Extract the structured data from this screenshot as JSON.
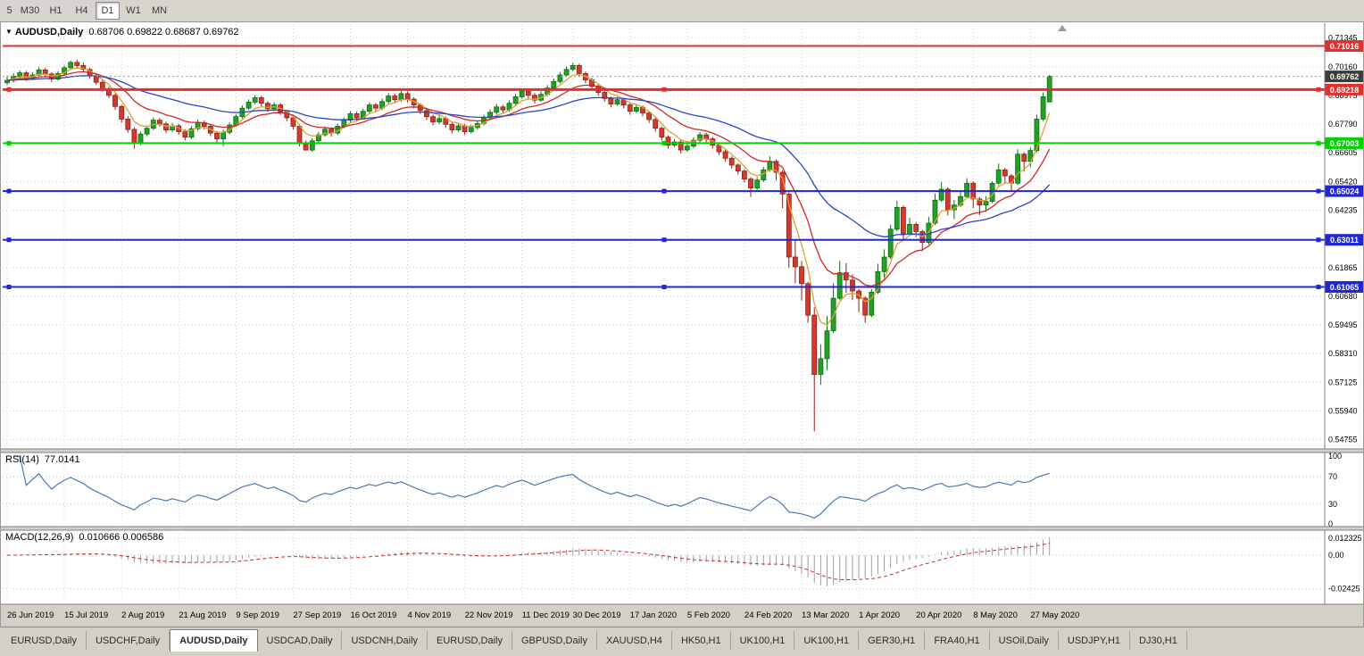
{
  "toolbar": {
    "timeframes": [
      "5",
      "M30",
      "H1",
      "H4",
      "D1",
      "W1",
      "MN"
    ],
    "active": "D1"
  },
  "chart_title": {
    "symbol": "AUDUSD,Daily",
    "ohlc": "0.68706 0.69822 0.68687 0.69762"
  },
  "chart_data": {
    "type": "candlestick",
    "symbol": "AUDUSD",
    "period": "Daily",
    "x_axis_dates": [
      "26 Jun 2019",
      "15 Jul 2019",
      "2 Aug 2019",
      "21 Aug 2019",
      "9 Sep 2019",
      "27 Sep 2019",
      "16 Oct 2019",
      "4 Nov 2019",
      "22 Nov 2019",
      "11 Dec 2019",
      "30 Dec 2019",
      "17 Jan 2020",
      "5 Feb 2020",
      "24 Feb 2020",
      "13 Mar 2020",
      "1 Apr 2020",
      "20 Apr 2020",
      "8 May 2020",
      "27 May 2020"
    ],
    "x_date_candle_index": [
      0,
      9,
      18,
      27,
      36,
      45,
      54,
      63,
      72,
      81,
      89,
      98,
      107,
      116,
      125,
      134,
      143,
      152,
      161
    ],
    "y_axis_labels": [
      "0.71345",
      "0.70160",
      "0.68975",
      "0.67790",
      "0.66605",
      "0.65420",
      "0.64235",
      "0.63050",
      "0.61865",
      "0.60680",
      "0.59495",
      "0.58310",
      "0.57125",
      "0.55940",
      "0.54755"
    ],
    "y_axis_range": {
      "top": 0.717,
      "bottom": 0.543
    },
    "colors": {
      "up": "#22a127",
      "up_stroke": "#0c6e12",
      "down": "#d33a2e",
      "down_stroke": "#8f1f16",
      "grid": "#cccccc",
      "background": "#ffffff",
      "red_line": "#e03030",
      "green_line": "#00d200",
      "blue_line": "#2026d2"
    },
    "moving_averages": [
      {
        "name": "ma-fast",
        "period": 5,
        "color": "#e0a030"
      },
      {
        "name": "ma-medium",
        "period": 13,
        "color": "#d02828"
      },
      {
        "name": "ma-slow",
        "period": 34,
        "color": "#2846c8"
      }
    ],
    "horizontal_lines": [
      {
        "price": 0.71016,
        "label": "0.71016",
        "color": "#e03030",
        "width": 2,
        "handles": false
      },
      {
        "price": 0.69218,
        "label": "0.69218",
        "color": "#e03030",
        "width": 3,
        "handles": true
      },
      {
        "price": 0.67003,
        "label": "0.67003",
        "color": "#00d200",
        "width": 2,
        "handles": true
      },
      {
        "price": 0.65024,
        "label": "0.65024",
        "color": "#2026d2",
        "width": 2,
        "handles": true
      },
      {
        "price": 0.63011,
        "label": "0.63011",
        "color": "#2026d2",
        "width": 2,
        "handles": true
      },
      {
        "price": 0.61065,
        "label": "0.61065",
        "color": "#2026d2",
        "width": 2,
        "handles": true
      }
    ],
    "current_price": {
      "value": 0.69762,
      "label": "0.69762",
      "badge_color": "#3c3c3c"
    },
    "indicators": {
      "rsi": {
        "name": "RSI(14)",
        "value": "77.0141",
        "period": 14,
        "color": "#4a7ab5",
        "axis_labels": [
          "100",
          "70",
          "30",
          "0"
        ],
        "level_values": [
          70,
          30
        ]
      },
      "macd": {
        "name": "MACD(12,26,9)",
        "values": "0.010666 0.006586",
        "fast": 12,
        "slow": 26,
        "signal": 9,
        "histogram_color": "#9e9e9e",
        "signal_color": "#cc2929",
        "axis_labels": [
          "0.012325",
          "0.00",
          "-0.02425"
        ],
        "axis_label_values": [
          0.012325,
          0,
          -0.02425
        ],
        "range": {
          "max": 0.0155,
          "min": -0.0335
        }
      }
    },
    "candles": [
      [
        0.695,
        0.6976,
        0.6941,
        0.696
      ],
      [
        0.696,
        0.6989,
        0.6951,
        0.6977
      ],
      [
        0.6977,
        0.7001,
        0.6968,
        0.6991
      ],
      [
        0.6991,
        0.6999,
        0.6957,
        0.6968
      ],
      [
        0.6968,
        0.6993,
        0.696,
        0.6982
      ],
      [
        0.6982,
        0.7014,
        0.6975,
        0.7003
      ],
      [
        0.7003,
        0.7011,
        0.6977,
        0.6986
      ],
      [
        0.6986,
        0.6994,
        0.6953,
        0.6965
      ],
      [
        0.6965,
        0.6997,
        0.6958,
        0.6988
      ],
      [
        0.6988,
        0.7021,
        0.6981,
        0.7012
      ],
      [
        0.7012,
        0.7042,
        0.7004,
        0.7034
      ],
      [
        0.7034,
        0.7045,
        0.701,
        0.7021
      ],
      [
        0.7021,
        0.7033,
        0.6994,
        0.7005
      ],
      [
        0.7005,
        0.7012,
        0.6966,
        0.6978
      ],
      [
        0.6978,
        0.6989,
        0.6941,
        0.6952
      ],
      [
        0.6952,
        0.6963,
        0.6913,
        0.6925
      ],
      [
        0.6925,
        0.6934,
        0.6886,
        0.6898
      ],
      [
        0.6898,
        0.6906,
        0.6838,
        0.6852
      ],
      [
        0.6852,
        0.6859,
        0.6785,
        0.68
      ],
      [
        0.68,
        0.6812,
        0.6744,
        0.6757
      ],
      [
        0.6757,
        0.6766,
        0.6677,
        0.67
      ],
      [
        0.67,
        0.6748,
        0.6692,
        0.6738
      ],
      [
        0.6738,
        0.6773,
        0.6729,
        0.6762
      ],
      [
        0.6762,
        0.6806,
        0.6754,
        0.6795
      ],
      [
        0.6795,
        0.6804,
        0.6768,
        0.678
      ],
      [
        0.678,
        0.6789,
        0.6742,
        0.6755
      ],
      [
        0.6755,
        0.6784,
        0.6746,
        0.6772
      ],
      [
        0.6772,
        0.678,
        0.6736,
        0.6748
      ],
      [
        0.6748,
        0.6757,
        0.6712,
        0.6725
      ],
      [
        0.6725,
        0.6771,
        0.6717,
        0.676
      ],
      [
        0.676,
        0.6797,
        0.6752,
        0.6785
      ],
      [
        0.6785,
        0.6794,
        0.6757,
        0.677
      ],
      [
        0.677,
        0.6779,
        0.6729,
        0.6742
      ],
      [
        0.6742,
        0.6751,
        0.6704,
        0.6718
      ],
      [
        0.6718,
        0.6756,
        0.6688,
        0.6745
      ],
      [
        0.6745,
        0.6786,
        0.6737,
        0.6775
      ],
      [
        0.6775,
        0.6821,
        0.6767,
        0.681
      ],
      [
        0.681,
        0.6856,
        0.6802,
        0.6845
      ],
      [
        0.6845,
        0.6881,
        0.6837,
        0.687
      ],
      [
        0.687,
        0.6899,
        0.6861,
        0.6888
      ],
      [
        0.6888,
        0.6896,
        0.6852,
        0.6865
      ],
      [
        0.6865,
        0.6874,
        0.6829,
        0.6842
      ],
      [
        0.6842,
        0.6869,
        0.6833,
        0.6858
      ],
      [
        0.6858,
        0.6866,
        0.6817,
        0.683
      ],
      [
        0.683,
        0.6838,
        0.6791,
        0.6805
      ],
      [
        0.6805,
        0.6813,
        0.6756,
        0.677
      ],
      [
        0.677,
        0.6779,
        0.6687,
        0.67
      ],
      [
        0.67,
        0.6712,
        0.667,
        0.6672
      ],
      [
        0.6672,
        0.6721,
        0.6664,
        0.671
      ],
      [
        0.671,
        0.6746,
        0.6702,
        0.6735
      ],
      [
        0.6735,
        0.6769,
        0.6727,
        0.6758
      ],
      [
        0.6758,
        0.6766,
        0.6728,
        0.6742
      ],
      [
        0.6742,
        0.6781,
        0.6734,
        0.677
      ],
      [
        0.677,
        0.6806,
        0.6762,
        0.6795
      ],
      [
        0.6795,
        0.6833,
        0.6787,
        0.6822
      ],
      [
        0.6822,
        0.6831,
        0.6791,
        0.6805
      ],
      [
        0.6805,
        0.6843,
        0.6797,
        0.6832
      ],
      [
        0.6832,
        0.6869,
        0.6824,
        0.6858
      ],
      [
        0.6858,
        0.6867,
        0.6831,
        0.6845
      ],
      [
        0.6845,
        0.6884,
        0.6837,
        0.6872
      ],
      [
        0.6872,
        0.6907,
        0.6864,
        0.6895
      ],
      [
        0.6895,
        0.6904,
        0.6866,
        0.688
      ],
      [
        0.688,
        0.6917,
        0.6872,
        0.6905
      ],
      [
        0.6905,
        0.6914,
        0.6868,
        0.6882
      ],
      [
        0.6882,
        0.689,
        0.6844,
        0.6858
      ],
      [
        0.6858,
        0.6866,
        0.6821,
        0.6835
      ],
      [
        0.6835,
        0.6843,
        0.6796,
        0.681
      ],
      [
        0.681,
        0.6819,
        0.6774,
        0.6788
      ],
      [
        0.6788,
        0.6815,
        0.678,
        0.6802
      ],
      [
        0.6802,
        0.681,
        0.6764,
        0.6778
      ],
      [
        0.6778,
        0.6786,
        0.6741,
        0.6755
      ],
      [
        0.6755,
        0.6784,
        0.6747,
        0.6772
      ],
      [
        0.6772,
        0.678,
        0.6734,
        0.6748
      ],
      [
        0.6748,
        0.6777,
        0.674,
        0.6765
      ],
      [
        0.6765,
        0.6794,
        0.6757,
        0.6782
      ],
      [
        0.6782,
        0.6817,
        0.6774,
        0.6805
      ],
      [
        0.6805,
        0.684,
        0.6797,
        0.6828
      ],
      [
        0.6828,
        0.6862,
        0.682,
        0.685
      ],
      [
        0.685,
        0.6859,
        0.6824,
        0.6838
      ],
      [
        0.6838,
        0.6877,
        0.683,
        0.6865
      ],
      [
        0.6865,
        0.6904,
        0.6857,
        0.6892
      ],
      [
        0.6892,
        0.6927,
        0.6884,
        0.6915
      ],
      [
        0.6915,
        0.6924,
        0.6884,
        0.6898
      ],
      [
        0.6898,
        0.6907,
        0.6864,
        0.6878
      ],
      [
        0.6878,
        0.6914,
        0.687,
        0.6902
      ],
      [
        0.6902,
        0.694,
        0.6894,
        0.6928
      ],
      [
        0.6928,
        0.6967,
        0.692,
        0.6955
      ],
      [
        0.6955,
        0.6994,
        0.6947,
        0.6982
      ],
      [
        0.6982,
        0.7017,
        0.6974,
        0.7005
      ],
      [
        0.7005,
        0.7032,
        0.6997,
        0.7021
      ],
      [
        0.7021,
        0.7029,
        0.6974,
        0.6988
      ],
      [
        0.6988,
        0.6996,
        0.6948,
        0.6962
      ],
      [
        0.6962,
        0.697,
        0.6921,
        0.6935
      ],
      [
        0.6935,
        0.6943,
        0.6896,
        0.691
      ],
      [
        0.691,
        0.6918,
        0.6871,
        0.6885
      ],
      [
        0.6885,
        0.6893,
        0.6848,
        0.6862
      ],
      [
        0.6862,
        0.6892,
        0.6854,
        0.688
      ],
      [
        0.688,
        0.6888,
        0.6844,
        0.6858
      ],
      [
        0.6858,
        0.6866,
        0.6818,
        0.6832
      ],
      [
        0.6832,
        0.686,
        0.6824,
        0.6848
      ],
      [
        0.6848,
        0.6856,
        0.6811,
        0.6825
      ],
      [
        0.6825,
        0.6833,
        0.6784,
        0.6798
      ],
      [
        0.6798,
        0.6806,
        0.6748,
        0.6762
      ],
      [
        0.6762,
        0.677,
        0.6711,
        0.6725
      ],
      [
        0.6725,
        0.6733,
        0.6678,
        0.6692
      ],
      [
        0.6692,
        0.6717,
        0.6684,
        0.6705
      ],
      [
        0.6705,
        0.6713,
        0.6658,
        0.6672
      ],
      [
        0.6672,
        0.67,
        0.6664,
        0.6688
      ],
      [
        0.6688,
        0.6724,
        0.668,
        0.6712
      ],
      [
        0.6712,
        0.6747,
        0.6704,
        0.6735
      ],
      [
        0.6735,
        0.6743,
        0.6704,
        0.6718
      ],
      [
        0.6718,
        0.6726,
        0.6678,
        0.6692
      ],
      [
        0.6692,
        0.67,
        0.6651,
        0.6665
      ],
      [
        0.6665,
        0.6673,
        0.6624,
        0.6638
      ],
      [
        0.6638,
        0.6646,
        0.6596,
        0.661
      ],
      [
        0.661,
        0.6618,
        0.6571,
        0.6585
      ],
      [
        0.6585,
        0.6593,
        0.6538,
        0.6552
      ],
      [
        0.6552,
        0.656,
        0.6478,
        0.6515
      ],
      [
        0.6515,
        0.656,
        0.6507,
        0.6548
      ],
      [
        0.6548,
        0.6602,
        0.654,
        0.659
      ],
      [
        0.659,
        0.6646,
        0.6582,
        0.6625
      ],
      [
        0.6625,
        0.6634,
        0.6546,
        0.658
      ],
      [
        0.658,
        0.6588,
        0.6432,
        0.649
      ],
      [
        0.649,
        0.6498,
        0.6185,
        0.623
      ],
      [
        0.623,
        0.6302,
        0.6122,
        0.619
      ],
      [
        0.619,
        0.6214,
        0.605,
        0.612
      ],
      [
        0.612,
        0.6128,
        0.5958,
        0.599
      ],
      [
        0.599,
        0.6022,
        0.551,
        0.5745
      ],
      [
        0.5745,
        0.587,
        0.5702,
        0.581
      ],
      [
        0.581,
        0.5988,
        0.5762,
        0.5925
      ],
      [
        0.5925,
        0.6122,
        0.5917,
        0.606
      ],
      [
        0.606,
        0.6214,
        0.6052,
        0.6165
      ],
      [
        0.6165,
        0.6205,
        0.6082,
        0.6135
      ],
      [
        0.6135,
        0.6158,
        0.6052,
        0.609
      ],
      [
        0.609,
        0.6098,
        0.6002,
        0.606
      ],
      [
        0.606,
        0.6068,
        0.5958,
        0.599
      ],
      [
        0.599,
        0.6098,
        0.5982,
        0.6085
      ],
      [
        0.6085,
        0.6202,
        0.6077,
        0.617
      ],
      [
        0.617,
        0.6262,
        0.6144,
        0.623
      ],
      [
        0.623,
        0.6364,
        0.6222,
        0.6345
      ],
      [
        0.6345,
        0.6462,
        0.6337,
        0.6435
      ],
      [
        0.6435,
        0.6443,
        0.6302,
        0.6325
      ],
      [
        0.6325,
        0.6392,
        0.6317,
        0.6365
      ],
      [
        0.6365,
        0.6373,
        0.6312,
        0.6335
      ],
      [
        0.6335,
        0.6343,
        0.6254,
        0.629
      ],
      [
        0.629,
        0.6396,
        0.6282,
        0.637
      ],
      [
        0.637,
        0.6492,
        0.6362,
        0.6465
      ],
      [
        0.6465,
        0.654,
        0.6457,
        0.651
      ],
      [
        0.651,
        0.6518,
        0.6402,
        0.6425
      ],
      [
        0.6425,
        0.6466,
        0.6387,
        0.6445
      ],
      [
        0.6445,
        0.6502,
        0.6437,
        0.648
      ],
      [
        0.648,
        0.6556,
        0.6472,
        0.6535
      ],
      [
        0.6535,
        0.6543,
        0.6432,
        0.647
      ],
      [
        0.647,
        0.6478,
        0.6403,
        0.6445
      ],
      [
        0.6445,
        0.6481,
        0.6417,
        0.646
      ],
      [
        0.646,
        0.6543,
        0.6452,
        0.6535
      ],
      [
        0.6535,
        0.6616,
        0.6527,
        0.659
      ],
      [
        0.659,
        0.6598,
        0.6532,
        0.6565
      ],
      [
        0.6565,
        0.6573,
        0.6506,
        0.6535
      ],
      [
        0.6535,
        0.6675,
        0.6527,
        0.6655
      ],
      [
        0.6655,
        0.6663,
        0.6582,
        0.6625
      ],
      [
        0.6625,
        0.6683,
        0.6601,
        0.667
      ],
      [
        0.667,
        0.6818,
        0.6662,
        0.68
      ],
      [
        0.68,
        0.691,
        0.6792,
        0.6892
      ],
      [
        0.68706,
        0.69822,
        0.68687,
        0.69762
      ]
    ]
  },
  "tabs": {
    "active_index": 2,
    "items": [
      "EURUSD,Daily",
      "USDCHF,Daily",
      "AUDUSD,Daily",
      "USDCAD,Daily",
      "USDCNH,Daily",
      "EURUSD,Daily",
      "GBPUSD,Daily",
      "XAUUSD,H4",
      "HK50,H1",
      "UK100,H1",
      "UK100,H1",
      "GER30,H1",
      "FRA40,H1",
      "USOil,Daily",
      "USDJPY,H1",
      "DJ30,H1"
    ]
  }
}
